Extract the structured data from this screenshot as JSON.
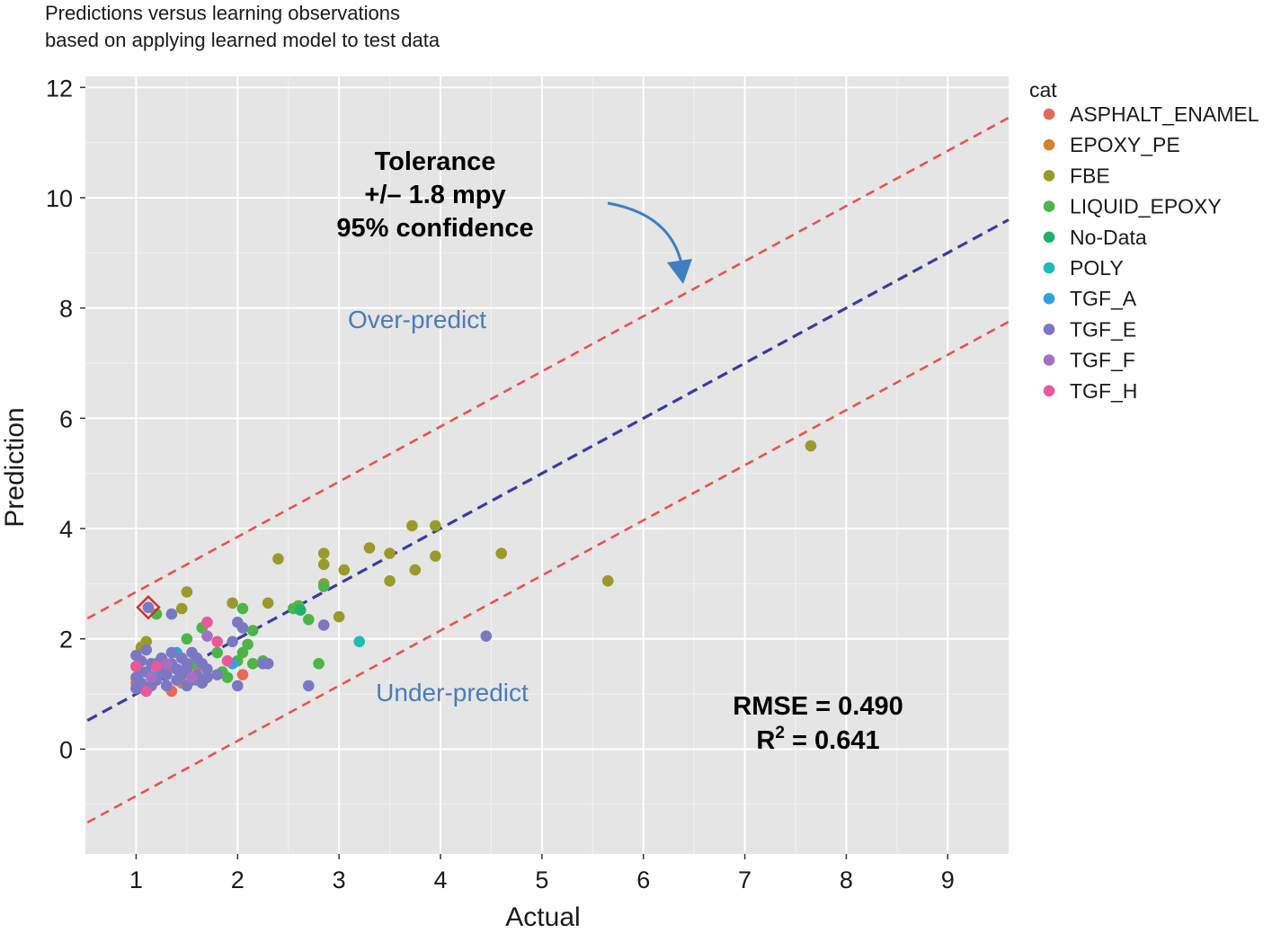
{
  "chart_data": {
    "type": "scatter",
    "subtitle_lines": [
      "Predictions versus learning observations",
      "based on applying learned model to test data"
    ],
    "xlabel": "Actual",
    "ylabel": "Prediction",
    "xlim": [
      0.5,
      9.6
    ],
    "ylim": [
      -1.9,
      12.2
    ],
    "x_ticks": [
      1,
      2,
      3,
      4,
      5,
      6,
      7,
      8,
      9
    ],
    "y_ticks": [
      0,
      2,
      4,
      6,
      8,
      10,
      12
    ],
    "background_color": "#e5e5e5",
    "grid": true,
    "legend": {
      "title": "cat",
      "position": "right",
      "items": [
        {
          "name": "ASPHALT_ENAMEL",
          "color": "#e8685a"
        },
        {
          "name": "EPOXY_PE",
          "color": "#d4832a"
        },
        {
          "name": "FBE",
          "color": "#9a9a2a"
        },
        {
          "name": "LIQUID_EPOXY",
          "color": "#4db548"
        },
        {
          "name": "No-Data",
          "color": "#1fb06e"
        },
        {
          "name": "POLY",
          "color": "#1fbbb5"
        },
        {
          "name": "TGF_A",
          "color": "#2ea3de"
        },
        {
          "name": "TGF_E",
          "color": "#7a78c2"
        },
        {
          "name": "TGF_F",
          "color": "#a66fc2"
        },
        {
          "name": "TGF_H",
          "color": "#e8589a"
        }
      ]
    },
    "reference_lines": [
      {
        "name": "fit",
        "slope": 1,
        "intercept": 0,
        "color": "#3c3aa0",
        "style": "dashed"
      },
      {
        "name": "upper-tolerance",
        "slope": 1,
        "intercept": 1.85,
        "color": "#e8524a",
        "style": "dashed"
      },
      {
        "name": "lower-tolerance",
        "slope": 1,
        "intercept": -1.85,
        "color": "#e8524a",
        "style": "dashed"
      }
    ],
    "annotations": {
      "tolerance_lines": [
        "Tolerance",
        "+/– 1.8 mpy",
        "95% confidence"
      ],
      "over_predict": "Over-predict",
      "under_predict": "Under-predict",
      "rmse": "RMSE = 0.490",
      "r2_prefix": "R",
      "r2_superscript": "2",
      "r2_value": " = 0.641",
      "over_predict_color": "#4a7cb8",
      "arrow_color": "#3f7fc0",
      "highlight_color": "#d32f2f",
      "highlighted_point": {
        "x": 1.12,
        "y": 2.57
      }
    },
    "series": [
      {
        "name": "ASPHALT_ENAMEL",
        "points": [
          [
            1.2,
            1.3
          ],
          [
            1.35,
            1.05
          ],
          [
            2.05,
            1.35
          ],
          [
            1.6,
            1.5
          ],
          [
            1.0,
            1.2
          ]
        ]
      },
      {
        "name": "EPOXY_PE",
        "points": [
          [
            1.3,
            1.4
          ],
          [
            1.45,
            1.2
          ]
        ]
      },
      {
        "name": "FBE",
        "points": [
          [
            1.05,
            1.85
          ],
          [
            1.1,
            1.95
          ],
          [
            1.45,
            2.55
          ],
          [
            1.5,
            2.85
          ],
          [
            1.95,
            2.65
          ],
          [
            2.3,
            2.65
          ],
          [
            2.4,
            3.45
          ],
          [
            2.85,
            3.55
          ],
          [
            2.85,
            3.35
          ],
          [
            3.05,
            3.25
          ],
          [
            3.3,
            3.65
          ],
          [
            3.5,
            3.55
          ],
          [
            3.5,
            3.05
          ],
          [
            3.72,
            4.05
          ],
          [
            3.75,
            3.25
          ],
          [
            3.95,
            4.05
          ],
          [
            3.95,
            3.5
          ],
          [
            4.6,
            3.55
          ],
          [
            5.65,
            3.05
          ],
          [
            7.65,
            5.5
          ],
          [
            2.85,
            3.0
          ],
          [
            3.0,
            2.4
          ],
          [
            1.25,
            1.5
          ]
        ]
      },
      {
        "name": "LIQUID_EPOXY",
        "points": [
          [
            1.2,
            2.45
          ],
          [
            1.55,
            1.55
          ],
          [
            1.65,
            2.2
          ],
          [
            1.8,
            1.75
          ],
          [
            2.0,
            1.6
          ],
          [
            2.05,
            2.55
          ],
          [
            2.1,
            1.9
          ],
          [
            2.15,
            1.55
          ],
          [
            2.25,
            1.6
          ],
          [
            2.15,
            2.15
          ],
          [
            2.55,
            2.55
          ],
          [
            2.6,
            2.6
          ],
          [
            2.7,
            2.35
          ],
          [
            2.8,
            1.55
          ],
          [
            2.85,
            2.95
          ],
          [
            1.85,
            1.4
          ],
          [
            1.5,
            2.0
          ],
          [
            1.9,
            1.3
          ],
          [
            2.05,
            1.75
          ]
        ]
      },
      {
        "name": "No-Data",
        "points": [
          [
            2.62,
            2.52
          ]
        ]
      },
      {
        "name": "POLY",
        "points": [
          [
            3.2,
            1.95
          ]
        ]
      },
      {
        "name": "TGF_A",
        "points": [
          [
            1.4,
            1.75
          ],
          [
            1.95,
            1.55
          ],
          [
            1.2,
            1.35
          ],
          [
            1.6,
            1.25
          ]
        ]
      },
      {
        "name": "TGF_E",
        "points": [
          [
            1.0,
            1.1
          ],
          [
            1.0,
            1.3
          ],
          [
            1.0,
            1.5
          ],
          [
            1.0,
            1.7
          ],
          [
            1.05,
            1.2
          ],
          [
            1.05,
            1.6
          ],
          [
            1.1,
            1.4
          ],
          [
            1.1,
            1.8
          ],
          [
            1.15,
            1.15
          ],
          [
            1.15,
            1.55
          ],
          [
            1.2,
            1.25
          ],
          [
            1.25,
            1.45
          ],
          [
            1.25,
            1.65
          ],
          [
            1.3,
            1.15
          ],
          [
            1.3,
            1.35
          ],
          [
            1.35,
            1.55
          ],
          [
            1.35,
            1.75
          ],
          [
            1.4,
            1.25
          ],
          [
            1.4,
            1.45
          ],
          [
            1.45,
            1.35
          ],
          [
            1.45,
            1.65
          ],
          [
            1.5,
            1.15
          ],
          [
            1.5,
            1.45
          ],
          [
            1.55,
            1.25
          ],
          [
            1.55,
            1.75
          ],
          [
            1.6,
            1.35
          ],
          [
            1.65,
            1.55
          ],
          [
            1.65,
            1.2
          ],
          [
            1.7,
            1.45
          ],
          [
            1.7,
            1.3
          ],
          [
            1.35,
            2.45
          ],
          [
            1.12,
            2.57
          ],
          [
            1.95,
            1.95
          ],
          [
            2.0,
            2.3
          ],
          [
            2.0,
            1.15
          ],
          [
            2.05,
            2.2
          ],
          [
            2.25,
            1.55
          ],
          [
            2.3,
            1.55
          ],
          [
            2.7,
            1.15
          ],
          [
            2.85,
            2.25
          ],
          [
            4.45,
            2.05
          ],
          [
            1.8,
            1.35
          ],
          [
            1.05,
            1.4
          ],
          [
            1.2,
            1.55
          ],
          [
            1.5,
            1.55
          ],
          [
            1.6,
            1.65
          ]
        ]
      },
      {
        "name": "TGF_F",
        "points": [
          [
            1.3,
            1.55
          ],
          [
            1.55,
            1.3
          ],
          [
            1.7,
            2.05
          ],
          [
            1.15,
            1.3
          ]
        ]
      },
      {
        "name": "TGF_H",
        "points": [
          [
            1.0,
            1.5
          ],
          [
            1.2,
            1.5
          ],
          [
            1.7,
            2.3
          ],
          [
            1.8,
            1.95
          ],
          [
            1.9,
            1.6
          ],
          [
            1.1,
            1.05
          ]
        ]
      }
    ]
  }
}
